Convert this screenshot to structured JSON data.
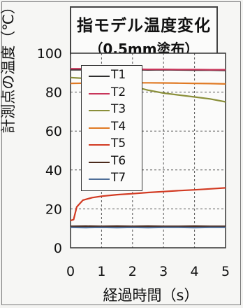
{
  "chart_data": {
    "type": "line",
    "title": "指モデル温度変化",
    "subtitle": "（0.5mm塗布）",
    "xlabel": "経過時間（s）",
    "ylabel": "計測点の温度（℃）",
    "xlim": [
      0,
      5
    ],
    "ylim": [
      0,
      100
    ],
    "xticks": [
      "0",
      "1",
      "2",
      "3",
      "4",
      "5"
    ],
    "yticks": [
      "0",
      "20",
      "40",
      "60",
      "80",
      "100"
    ],
    "grid": true,
    "legend_position": "upper-left",
    "series": [
      {
        "name": "T1",
        "color": "#2f2f2f",
        "x": [
          0,
          0.5,
          1,
          1.5,
          2,
          2.5,
          3,
          3.5,
          4,
          4.5,
          5
        ],
        "y": [
          91.5,
          91.5,
          91.4,
          91.5,
          91.6,
          91.4,
          91.5,
          91.4,
          91.3,
          91.3,
          91.2
        ]
      },
      {
        "name": "T2",
        "color": "#c8355a",
        "x": [
          0,
          0.5,
          1,
          1.5,
          2,
          2.5,
          3,
          3.5,
          4,
          4.5,
          5
        ],
        "y": [
          92,
          92,
          91.9,
          91.8,
          91.8,
          91.7,
          91.7,
          91.6,
          91.6,
          91.5,
          91.5
        ]
      },
      {
        "name": "T3",
        "color": "#8a8f3a",
        "x": [
          0,
          0.5,
          1,
          1.5,
          2,
          2.5,
          3,
          3.5,
          4,
          4.5,
          5
        ],
        "y": [
          87.5,
          87,
          86,
          84.5,
          83,
          81,
          79.5,
          78.5,
          77.5,
          76.5,
          75
        ]
      },
      {
        "name": "T4",
        "color": "#e07a24",
        "x": [
          0,
          0.5,
          1,
          1.5,
          2,
          2.5,
          3,
          3.5,
          4,
          4.5,
          5
        ],
        "y": [
          84.5,
          84.6,
          84.7,
          84.7,
          84.8,
          84.8,
          84.7,
          84.6,
          84.5,
          84.4,
          84.2
        ]
      },
      {
        "name": "T5",
        "color": "#d23a22",
        "x": [
          0,
          0.1,
          0.2,
          0.4,
          0.7,
          1,
          1.5,
          2,
          2.5,
          3,
          3.5,
          4,
          4.5,
          5
        ],
        "y": [
          14,
          14.5,
          21,
          24.5,
          25.8,
          26.5,
          27.3,
          27.8,
          28.4,
          28.9,
          29.4,
          29.8,
          30.3,
          30.8
        ]
      },
      {
        "name": "T6",
        "color": "#4a2a1c",
        "x": [
          0,
          0.5,
          1,
          1.5,
          2,
          2.5,
          3,
          3.5,
          4,
          4.5,
          5
        ],
        "y": [
          11,
          11.1,
          11,
          11.1,
          11,
          11.1,
          11,
          11,
          11.1,
          11,
          11
        ]
      },
      {
        "name": "T7",
        "color": "#4f6e98",
        "x": [
          0,
          0.5,
          1,
          1.5,
          2,
          2.5,
          3,
          3.5,
          4,
          4.5,
          5
        ],
        "y": [
          10.5,
          10.4,
          10.5,
          10.4,
          10.5,
          10.4,
          10.5,
          10.5,
          10.4,
          10.5,
          10.5
        ]
      }
    ]
  }
}
